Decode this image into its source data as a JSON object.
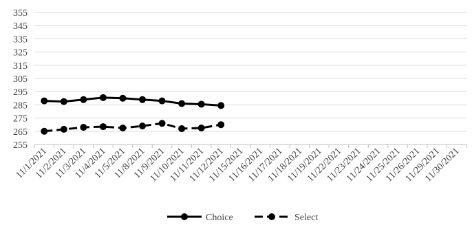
{
  "chart_data": {
    "type": "line",
    "categories": [
      "11/1/2021",
      "11/2/2021",
      "11/3/2021",
      "11/4/2021",
      "11/5/2021",
      "11/8/2021",
      "11/9/2021",
      "11/10/2021",
      "11/11/2021",
      "11/12/2021",
      "11/15/2021",
      "11/16/2021",
      "11/17/2021",
      "11/18/2021",
      "11/19/2021",
      "11/22/2021",
      "11/23/2021",
      "11/24/2021",
      "11/25/2021",
      "11/26/2021",
      "11/29/2021",
      "11/30/2021"
    ],
    "ylim": [
      255,
      355
    ],
    "yticks": [
      255,
      265,
      275,
      285,
      295,
      305,
      315,
      325,
      335,
      345,
      355
    ],
    "grid": true,
    "legend_position": "bottom",
    "series": [
      {
        "name": "Choice",
        "style": "solid",
        "color": "#000000",
        "values": [
          288,
          287.5,
          289,
          290.5,
          290,
          289,
          288,
          286,
          285.5,
          284.5,
          null,
          null,
          null,
          null,
          null,
          null,
          null,
          null,
          null,
          null,
          null,
          null
        ]
      },
      {
        "name": "Select",
        "style": "dashed",
        "color": "#000000",
        "values": [
          265,
          266.5,
          268,
          268.5,
          267.5,
          269,
          271,
          267,
          267.5,
          270,
          null,
          null,
          null,
          null,
          null,
          null,
          null,
          null,
          null,
          null,
          null,
          null
        ]
      }
    ]
  }
}
